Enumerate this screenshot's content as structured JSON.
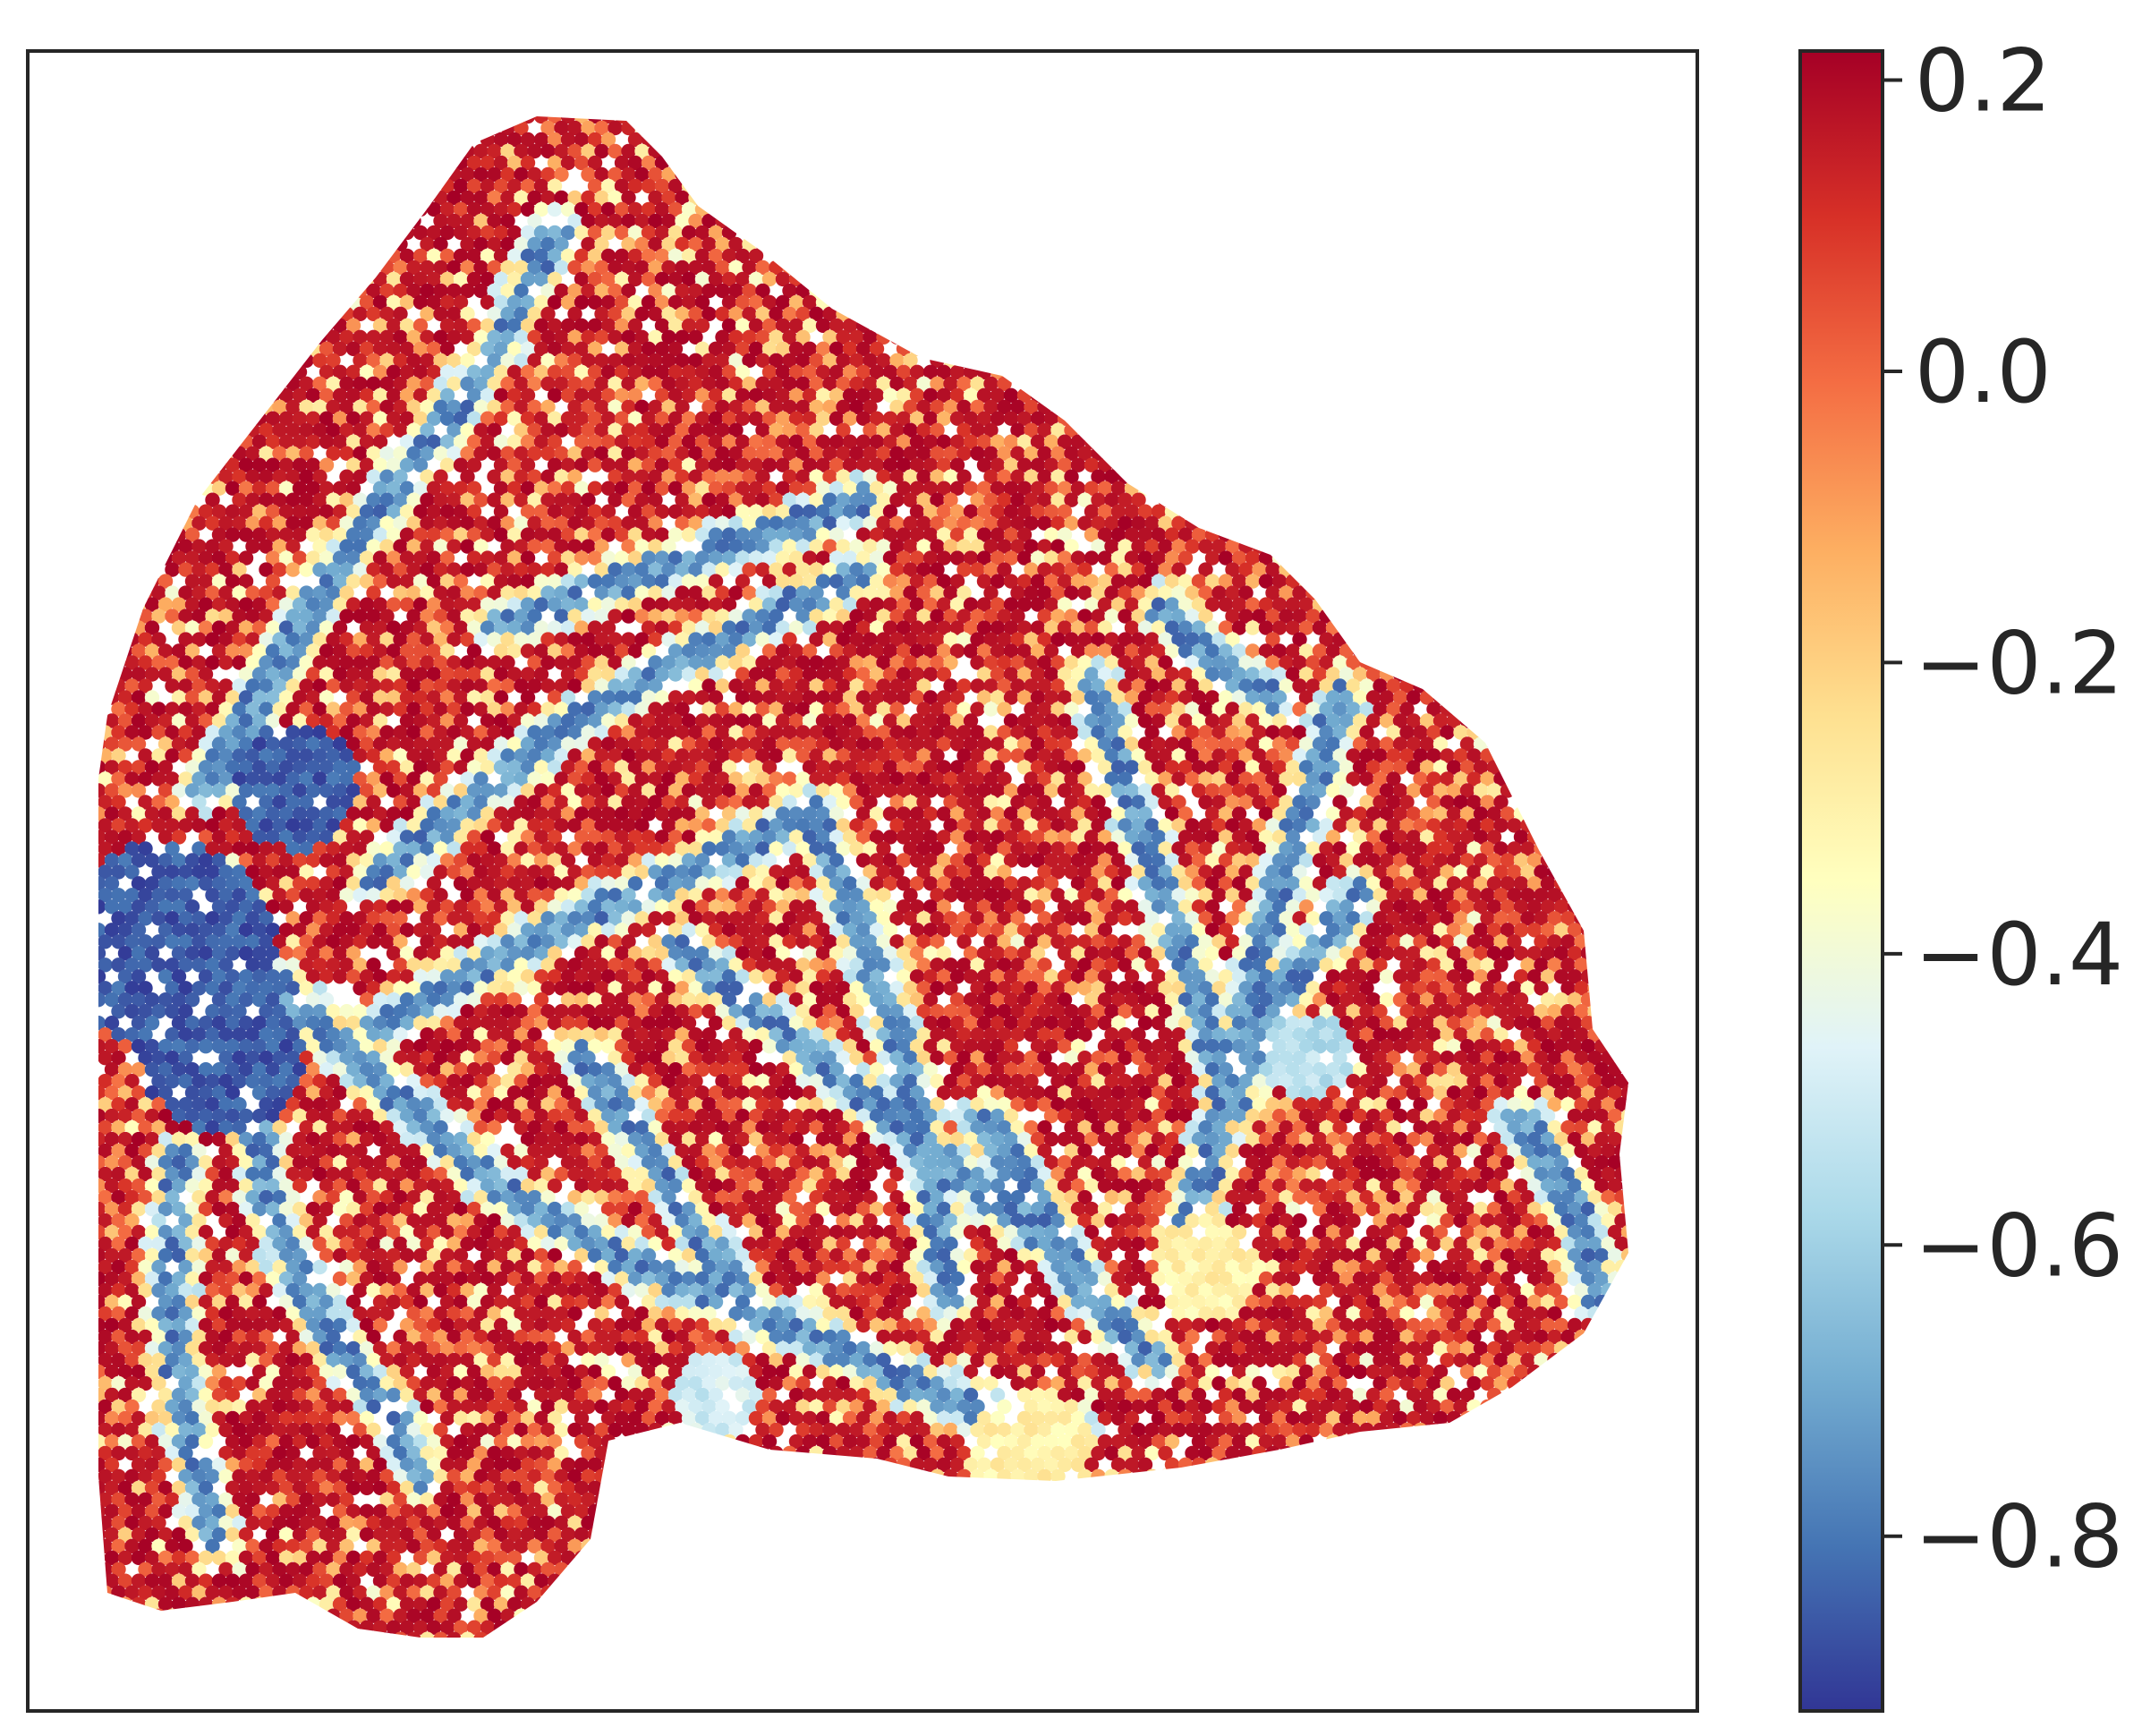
{
  "chart_data": {
    "type": "heatmap",
    "subtype": "spatial-hexbin",
    "title": "",
    "xlabel": "",
    "ylabel": "",
    "axes_ticks": "none",
    "grid": false,
    "legend": "none",
    "colorbar": {
      "placement": "right",
      "colormap": "RdYlBu_r",
      "vmin": -0.92,
      "vmax": 0.22,
      "ticks": [
        0.2,
        0.0,
        -0.2,
        -0.4,
        -0.6,
        -0.8
      ],
      "tick_labels": [
        "0.2",
        "0.0",
        "−0.2",
        "−0.4",
        "−0.6",
        "−0.8"
      ],
      "colors": [
        "#313695",
        "#4575b4",
        "#74add1",
        "#abd9e9",
        "#e0f3f8",
        "#ffffbf",
        "#fee090",
        "#fdae61",
        "#f46d43",
        "#d73027",
        "#a50026"
      ]
    },
    "spot_value_summary": {
      "high_regions_value": 0.2,
      "vessel_regions_value": -0.85,
      "transition_value": -0.3
    }
  }
}
